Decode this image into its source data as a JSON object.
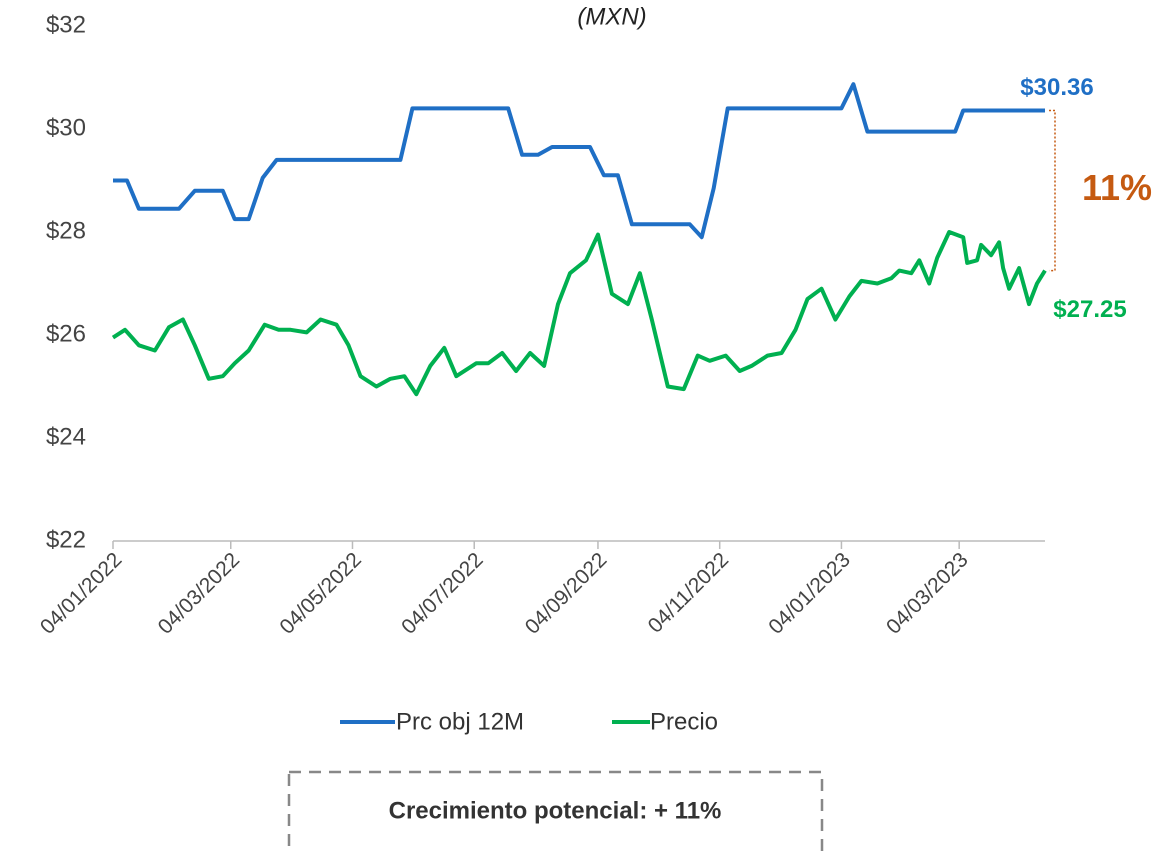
{
  "chart_data": {
    "type": "line",
    "subtitle": "(MXN)",
    "xlim": [
      "04/01/2022",
      "16/04/2023"
    ],
    "xticks": [
      "04/01/2022",
      "04/03/2022",
      "04/05/2022",
      "04/07/2022",
      "04/09/2022",
      "04/11/2022",
      "04/01/2023",
      "04/03/2023"
    ],
    "ylim": [
      22,
      32
    ],
    "yticks": [
      {
        "value": 22,
        "label": "$22"
      },
      {
        "value": 24,
        "label": "$24"
      },
      {
        "value": 26,
        "label": "$26"
      },
      {
        "value": 28,
        "label": "$28"
      },
      {
        "value": 30,
        "label": "$30"
      },
      {
        "value": 32,
        "label": "$32"
      }
    ],
    "grid": false,
    "legend": "bottom",
    "series": [
      {
        "name": "Prc obj 12M",
        "color": "#1f6fc5",
        "x": [
          "04/01/2022",
          "11/01/2022",
          "17/01/2022",
          "06/02/2022",
          "14/02/2022",
          "28/02/2022",
          "06/03/2022",
          "13/03/2022",
          "20/03/2022",
          "27/03/2022",
          "28/05/2022",
          "03/06/2022",
          "21/07/2022",
          "28/07/2022",
          "05/08/2022",
          "12/08/2022",
          "31/08/2022",
          "07/09/2022",
          "14/09/2022",
          "21/09/2022",
          "20/10/2022",
          "26/10/2022",
          "01/11/2022",
          "08/11/2022",
          "04/01/2023",
          "10/01/2023",
          "17/01/2023",
          "02/03/2023",
          "06/03/2023",
          "16/04/2023"
        ],
        "values": [
          29.0,
          29.0,
          28.45,
          28.45,
          28.8,
          28.8,
          28.25,
          28.25,
          29.05,
          29.4,
          29.4,
          30.4,
          30.4,
          29.5,
          29.5,
          29.65,
          29.65,
          29.1,
          29.1,
          28.15,
          28.15,
          27.9,
          28.85,
          30.4,
          30.4,
          30.87,
          29.95,
          29.95,
          30.36,
          30.36
        ],
        "value_labels": [
          null,
          null,
          null,
          null,
          null,
          null,
          null,
          null,
          null,
          null,
          null,
          null,
          null,
          null,
          null,
          null,
          null,
          null,
          null,
          null,
          null,
          null,
          null,
          null,
          null,
          null,
          null,
          null,
          null,
          "$30.36"
        ]
      },
      {
        "name": "Precio",
        "color": "#00b050",
        "x": [
          "04/01/2022",
          "10/01/2022",
          "17/01/2022",
          "25/01/2022",
          "01/02/2022",
          "08/02/2022",
          "14/02/2022",
          "21/02/2022",
          "28/02/2022",
          "06/03/2022",
          "13/03/2022",
          "21/03/2022",
          "28/03/2022",
          "03/04/2022",
          "11/04/2022",
          "18/04/2022",
          "26/04/2022",
          "02/05/2022",
          "08/05/2022",
          "16/05/2022",
          "23/05/2022",
          "30/05/2022",
          "05/06/2022",
          "12/06/2022",
          "19/06/2022",
          "25/06/2022",
          "05/07/2022",
          "11/07/2022",
          "18/07/2022",
          "25/07/2022",
          "01/08/2022",
          "08/08/2022",
          "15/08/2022",
          "21/08/2022",
          "29/08/2022",
          "04/09/2022",
          "11/09/2022",
          "19/09/2022",
          "25/09/2022",
          "01/10/2022",
          "09/10/2022",
          "17/10/2022",
          "24/10/2022",
          "30/10/2022",
          "07/11/2022",
          "14/11/2022",
          "20/11/2022",
          "28/11/2022",
          "05/12/2022",
          "12/12/2022",
          "18/12/2022",
          "25/12/2022",
          "01/01/2023",
          "08/01/2023",
          "14/01/2023",
          "22/01/2023",
          "29/01/2023",
          "02/02/2023",
          "08/02/2023",
          "12/02/2023",
          "17/02/2023",
          "21/02/2023",
          "27/02/2023",
          "06/03/2023",
          "08/03/2023",
          "13/03/2023",
          "15/03/2023",
          "20/03/2023",
          "24/03/2023",
          "26/03/2023",
          "29/03/2023",
          "03/04/2023",
          "08/04/2023",
          "12/04/2023",
          "16/04/2023"
        ],
        "values": [
          25.95,
          26.1,
          25.8,
          25.7,
          26.15,
          26.3,
          25.8,
          25.15,
          25.2,
          25.45,
          25.7,
          26.2,
          26.1,
          26.1,
          26.05,
          26.3,
          26.2,
          25.8,
          25.2,
          25.0,
          25.15,
          25.2,
          24.85,
          25.4,
          25.75,
          25.2,
          25.45,
          25.45,
          25.65,
          25.3,
          25.65,
          25.4,
          26.6,
          27.2,
          27.45,
          27.95,
          26.8,
          26.6,
          27.2,
          26.3,
          25.0,
          24.95,
          25.6,
          25.5,
          25.6,
          25.3,
          25.4,
          25.6,
          25.65,
          26.1,
          26.7,
          26.9,
          26.3,
          26.75,
          27.05,
          27.0,
          27.1,
          27.25,
          27.2,
          27.45,
          27.0,
          27.5,
          28.0,
          27.9,
          27.4,
          27.45,
          27.75,
          27.55,
          27.8,
          27.3,
          26.9,
          27.3,
          26.6,
          27.0,
          27.25
        ],
        "value_labels": [
          null,
          null,
          null,
          null,
          null,
          null,
          null,
          null,
          null,
          null,
          null,
          null,
          null,
          null,
          null,
          null,
          null,
          null,
          null,
          null,
          null,
          null,
          null,
          null,
          null,
          null,
          null,
          null,
          null,
          null,
          null,
          null,
          null,
          null,
          null,
          null,
          null,
          null,
          null,
          null,
          null,
          null,
          null,
          null,
          null,
          null,
          null,
          null,
          null,
          null,
          null,
          null,
          null,
          null,
          null,
          null,
          null,
          null,
          null,
          null,
          null,
          null,
          null,
          null,
          null,
          null,
          null,
          null,
          null,
          null,
          null,
          null,
          null,
          null,
          "$27.25"
        ]
      }
    ],
    "upside_label": "11%",
    "note": "Crecimiento potencial: + 11%"
  }
}
